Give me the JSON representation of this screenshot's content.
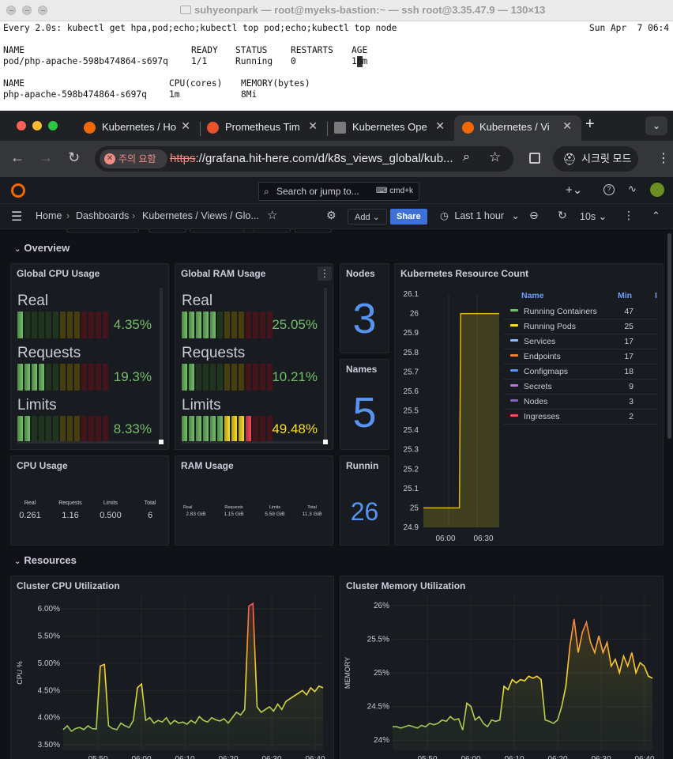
{
  "terminal": {
    "title": "suhyeonpark — root@myeks-bastion:~ — ssh root@3.35.47.9 — 130×13",
    "command": "Every 2.0s: kubectl get hpa,pod;echo;kubectl top pod;echo;kubectl top node",
    "datetime": "Sun Apr  7 06:4",
    "pod_headers": [
      "NAME",
      "READY",
      "STATUS",
      "RESTARTS",
      "AGE"
    ],
    "pod_row": [
      "pod/php-apache-598b474864-s697q",
      "1/1",
      "Running",
      "0",
      "16m"
    ],
    "top_headers": [
      "NAME",
      "CPU(cores)",
      "MEMORY(bytes)"
    ],
    "top_row": [
      "php-apache-598b474864-s697q",
      "1m",
      "8Mi"
    ]
  },
  "browser": {
    "tabs": [
      {
        "label": "Kubernetes / Ho",
        "icon": "grafana-icon"
      },
      {
        "label": "Prometheus Tim",
        "icon": "prometheus-icon"
      },
      {
        "label": "Kubernetes Ope",
        "icon": "kubernetes-icon"
      },
      {
        "label": "Kubernetes / Vi",
        "icon": "grafana-icon"
      }
    ],
    "security_warning": "주의 요함",
    "url_scheme": "https",
    "url_rest": "://grafana.hit-here.com/d/k8s_views_global/kub...",
    "incognito_label": "시크릿 모드"
  },
  "grafana": {
    "search_placeholder": "Search or jump to...",
    "search_shortcut": "cmd+k",
    "breadcrumbs": [
      "Home",
      "Dashboards",
      "Kubernetes / Views / Glo..."
    ],
    "add_label": "Add",
    "share_label": "Share",
    "time_range": "Last 1 hour",
    "refresh_interval": "10s",
    "rows": {
      "overview": "Overview",
      "resources": "Resources"
    },
    "cpu_usage_panel": {
      "title": "Global CPU Usage",
      "real_label": "Real",
      "real_value": "4.35%",
      "requests_label": "Requests",
      "requests_value": "19.3%",
      "limits_label": "Limits",
      "limits_value": "8.33%"
    },
    "ram_usage_panel": {
      "title": "Global RAM Usage",
      "real_label": "Real",
      "real_value": "25.05%",
      "requests_label": "Requests",
      "requests_value": "10.21%",
      "limits_label": "Limits",
      "limits_value": "49.48%"
    },
    "nodes_panel": {
      "title": "Nodes",
      "value": "3"
    },
    "namespaces_panel": {
      "title": "Names",
      "value": "5"
    },
    "running_panel": {
      "title": "Runnin",
      "value": "26"
    },
    "resource_count_panel": {
      "title": "Kubernetes Resource Count",
      "legend_header": "Name",
      "legend_min_header": "Min",
      "legend": [
        {
          "name": "Running Containers",
          "min": "47",
          "color": "#73bf69"
        },
        {
          "name": "Running Pods",
          "min": "25",
          "color": "#fade2a"
        },
        {
          "name": "Services",
          "min": "17",
          "color": "#8ab8ff"
        },
        {
          "name": "Endpoints",
          "min": "17",
          "color": "#ff7f2a"
        },
        {
          "name": "Configmaps",
          "min": "18",
          "color": "#5794f2"
        },
        {
          "name": "Secrets",
          "min": "9",
          "color": "#b877d9"
        },
        {
          "name": "Nodes",
          "min": "3",
          "color": "#8060c0"
        },
        {
          "name": "Ingresses",
          "min": "2",
          "color": "#f2495c"
        }
      ]
    },
    "cpu_stats_panel": {
      "title": "CPU Usage",
      "labels": [
        "Real",
        "Requests",
        "Limits",
        "Total"
      ],
      "values": [
        "0.261",
        "1.16",
        "0.500",
        "6"
      ]
    },
    "ram_stats_panel": {
      "title": "RAM Usage",
      "labels": [
        "Real",
        "Requests",
        "Limits",
        "Total"
      ],
      "values": [
        "2.83 GiB",
        "1.15 GiB",
        "5.58 GiB",
        "11.3 GiB"
      ]
    },
    "cpu_util_panel": {
      "title": "Cluster CPU Utilization"
    },
    "mem_util_panel": {
      "title": "Cluster Memory Utilization"
    }
  },
  "chart_data": [
    {
      "type": "line",
      "title": "Kubernetes Resource Count",
      "ylim": [
        24.9,
        26.1
      ],
      "yticks": [
        "26.1",
        "26",
        "25.9",
        "25.8",
        "25.7",
        "25.6",
        "25.5",
        "25.4",
        "25.3",
        "25.2",
        "25.1",
        "25",
        "24.9"
      ],
      "xticks": [
        "06:00",
        "06:30"
      ],
      "series": [
        {
          "name": "Running Pods",
          "x": [
            "05:40",
            "06:09",
            "06:10",
            "06:41"
          ],
          "values": [
            25,
            25,
            26,
            26
          ]
        }
      ]
    },
    {
      "type": "line",
      "title": "Cluster CPU Utilization",
      "ylabel": "CPU %",
      "ylim": [
        3.4,
        6.25
      ],
      "yticks": [
        "6.00%",
        "5.50%",
        "5.00%",
        "4.50%",
        "4.00%",
        "3.50%"
      ],
      "xticks": [
        "05:50",
        "06:00",
        "06:10",
        "06:20",
        "06:30",
        "06:40"
      ],
      "series": [
        {
          "values": [
            3.78,
            3.85,
            3.75,
            3.8,
            3.82,
            3.78,
            3.85,
            3.8,
            3.79,
            4.95,
            4.98,
            3.85,
            3.8,
            3.78,
            3.9,
            3.85,
            3.82,
            3.95,
            4.55,
            4.62,
            3.95,
            4.0,
            3.9,
            3.95,
            3.92,
            4.0,
            3.88,
            3.95,
            3.9,
            3.92,
            3.88,
            3.95,
            3.9,
            4.02,
            3.95,
            3.92,
            4.0,
            3.96,
            3.94,
            3.98,
            3.9,
            4.0,
            4.1,
            4.05,
            4.15,
            6.05,
            6.1,
            4.2,
            4.1,
            4.15,
            4.2,
            4.12,
            4.25,
            4.15,
            4.3,
            4.35,
            4.4,
            4.45,
            4.5,
            4.42,
            4.55,
            4.48,
            4.58,
            4.55
          ]
        }
      ]
    },
    {
      "type": "line",
      "title": "Cluster Memory Utilization",
      "ylabel": "MEMORY",
      "ylim": [
        23.85,
        26.15
      ],
      "yticks": [
        "26%",
        "25.5%",
        "25%",
        "24.5%",
        "24%"
      ],
      "xticks": [
        "05:50",
        "06:00",
        "06:10",
        "06:20",
        "06:30",
        "06:40"
      ],
      "series": [
        {
          "values": [
            24.2,
            24.2,
            24.18,
            24.2,
            24.22,
            24.2,
            24.18,
            24.22,
            24.2,
            24.25,
            24.23,
            24.25,
            24.3,
            24.28,
            24.35,
            24.3,
            24.32,
            24.15,
            24.55,
            24.5,
            24.3,
            24.35,
            24.25,
            24.2,
            24.3,
            24.28,
            24.3,
            24.8,
            24.75,
            24.9,
            24.85,
            24.9,
            24.88,
            24.95,
            24.92,
            24.95,
            24.9,
            24.3,
            24.28,
            24.25,
            24.3,
            24.5,
            24.8,
            25.4,
            25.8,
            25.3,
            25.6,
            25.75,
            25.45,
            25.3,
            25.55,
            25.3,
            25.45,
            25.1,
            25.2,
            25.0,
            25.25,
            25.1,
            25.3,
            25.0,
            25.15,
            25.1,
            24.95,
            24.92
          ]
        }
      ]
    }
  ]
}
